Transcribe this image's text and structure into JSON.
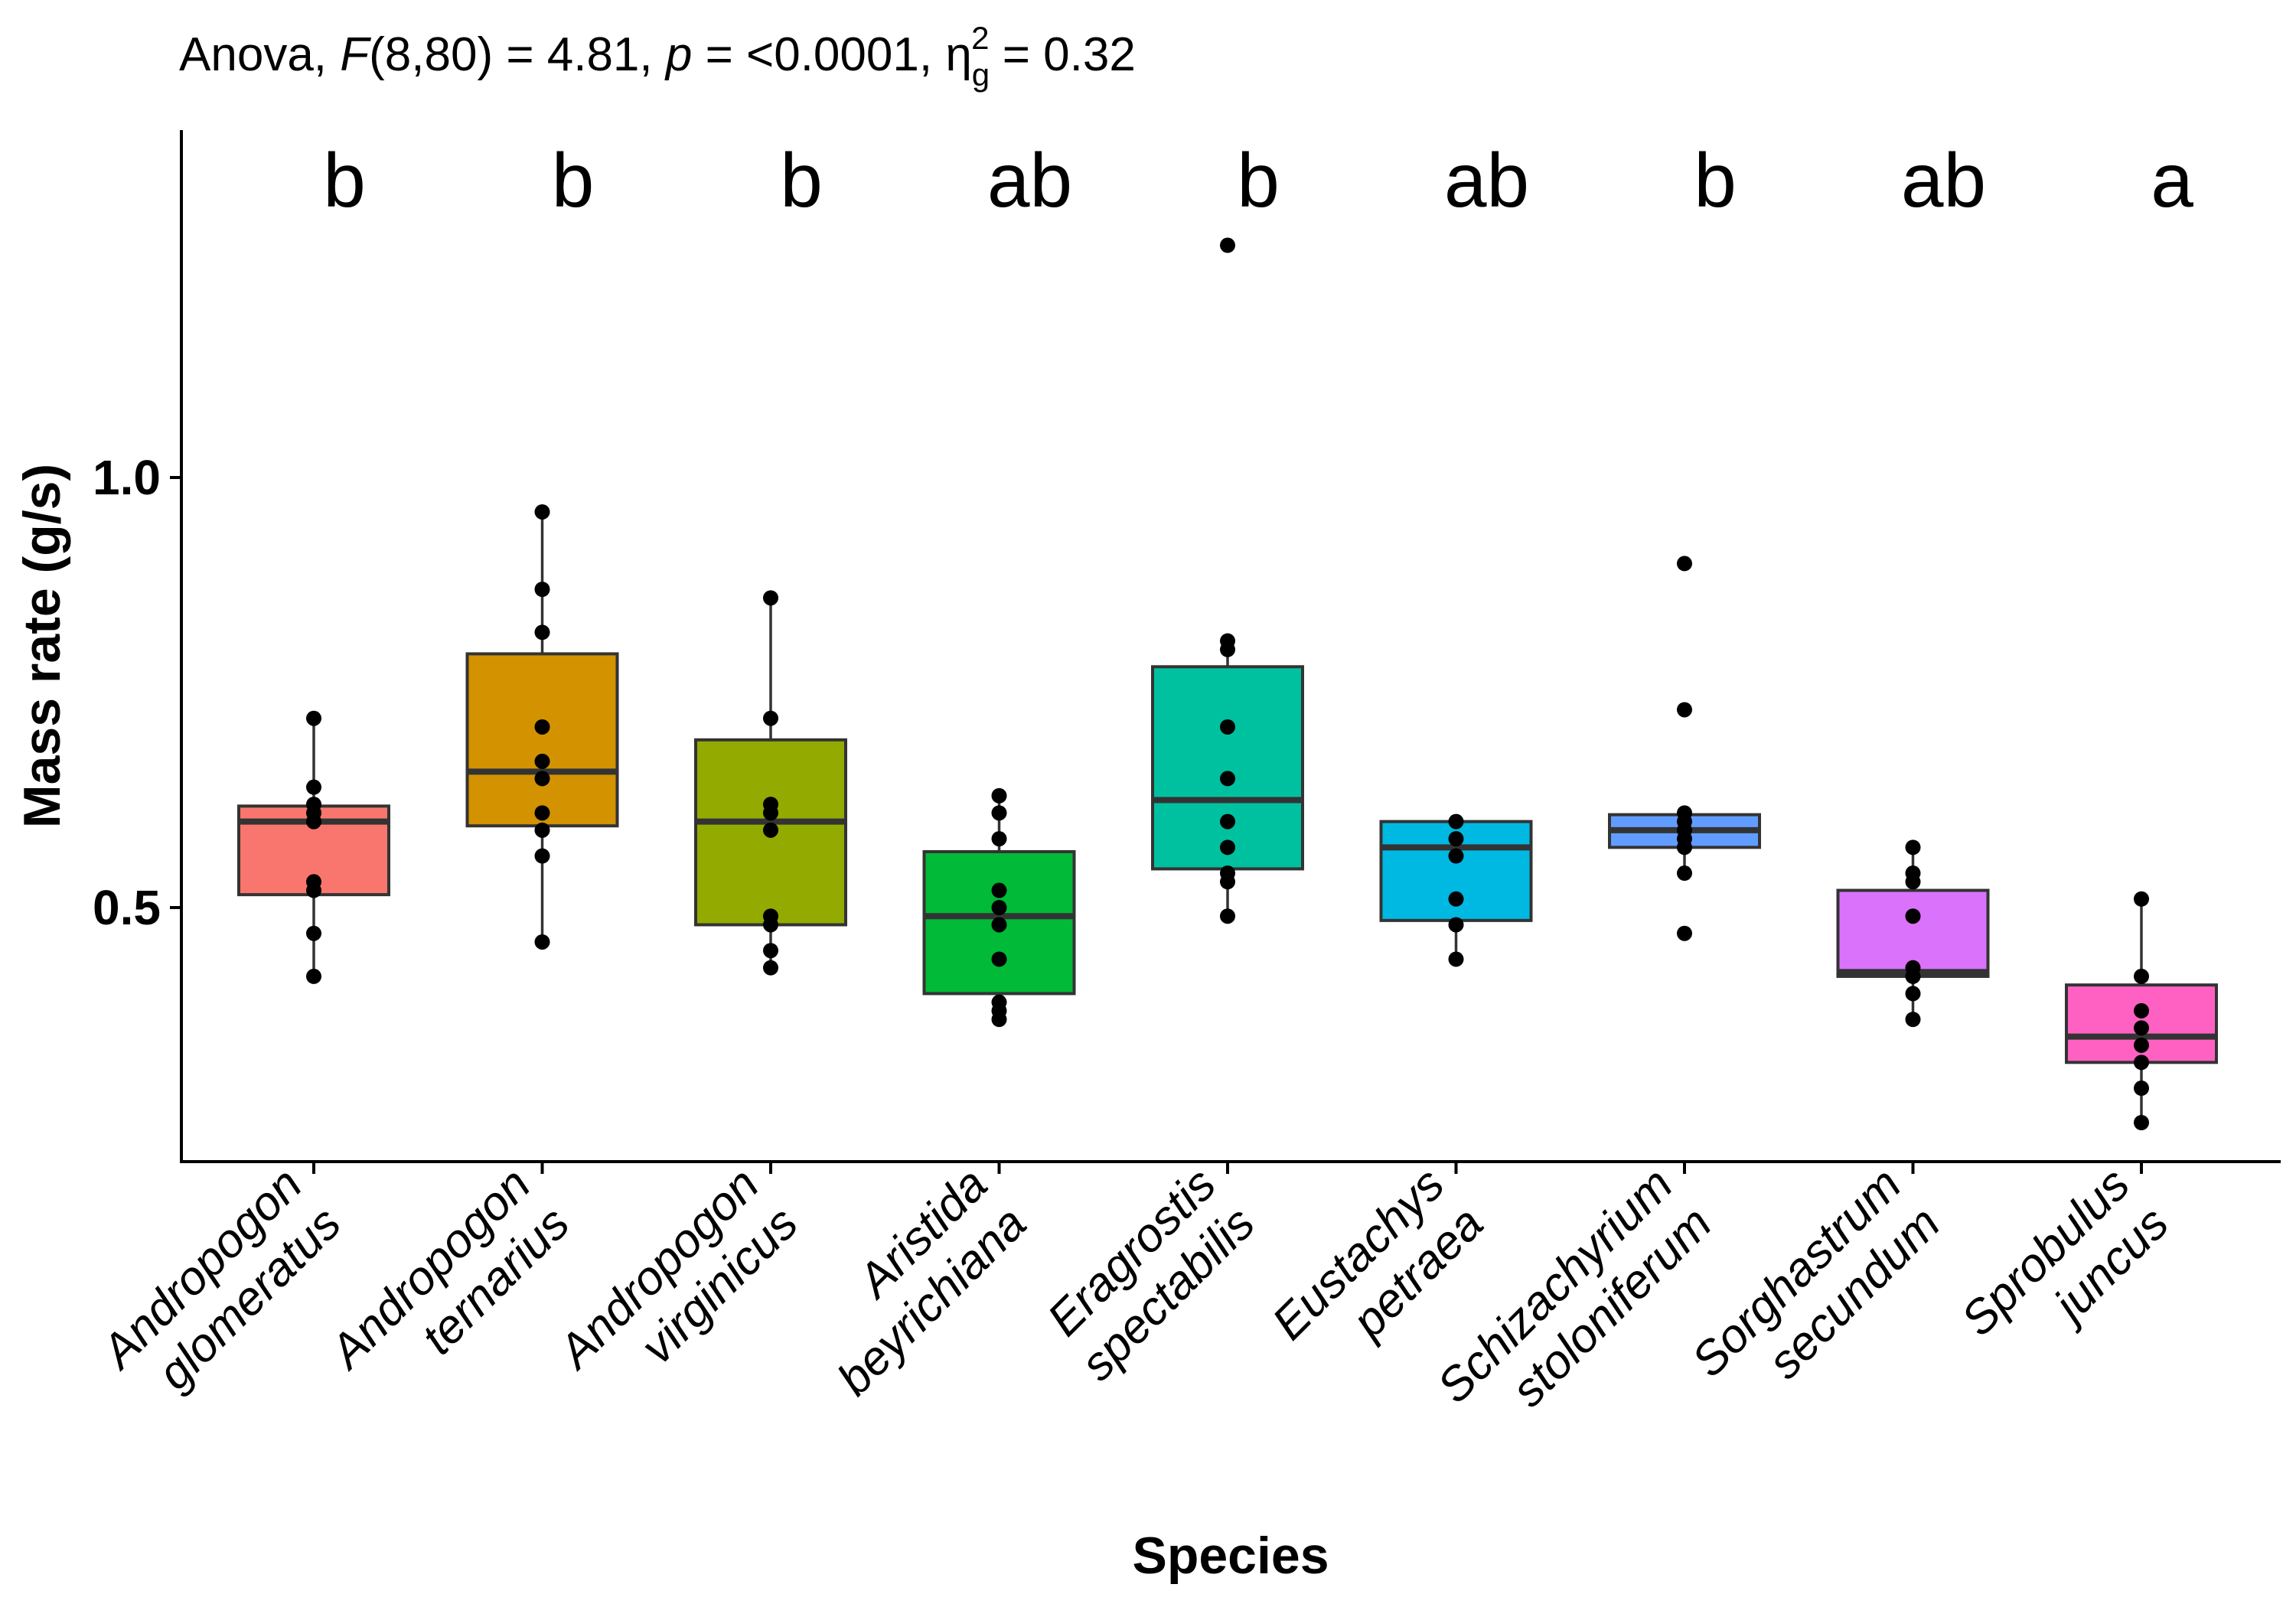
{
  "chart_data": {
    "type": "boxplot",
    "title_parts": {
      "prefix": "Anova, ",
      "f_label": "F",
      "f_args": "(8,80) = 4.81, ",
      "p_label": "p",
      "p_value": " = <0.0001, ",
      "eta": "η",
      "eta_sub": "g",
      "eta_sup": "2",
      "eta_value": " = 0.32"
    },
    "xlabel": "Species",
    "ylabel": "Mass rate (g/s)",
    "y_ticks": [
      {
        "value": 0.5,
        "label": "0.5"
      },
      {
        "value": 1.0,
        "label": "1.0"
      }
    ],
    "categories": [
      {
        "name_line1": "Andropogon",
        "name_line2": "glomeratus",
        "color": "#F8766D",
        "letter": "b",
        "q1": 0.515,
        "median": 0.6,
        "q3": 0.618,
        "whisker_low": 0.42,
        "whisker_high": 0.72,
        "points": [
          0.72,
          0.64,
          0.62,
          0.61,
          0.6,
          0.6,
          0.53,
          0.52,
          0.47,
          0.42
        ]
      },
      {
        "name_line1": "Andropogon",
        "name_line2": "ternarius",
        "color": "#D39200",
        "letter": "b",
        "q1": 0.595,
        "median": 0.658,
        "q3": 0.795,
        "whisker_low": 0.46,
        "whisker_high": 0.96,
        "points": [
          0.96,
          0.87,
          0.82,
          0.71,
          0.67,
          0.65,
          0.61,
          0.59,
          0.56,
          0.46
        ]
      },
      {
        "name_line1": "Andropogon",
        "name_line2": "virginicus",
        "color": "#93AA00",
        "letter": "b",
        "q1": 0.48,
        "median": 0.6,
        "q3": 0.695,
        "whisker_low": 0.43,
        "whisker_high": 0.86,
        "points": [
          0.86,
          0.72,
          0.62,
          0.61,
          0.59,
          0.49,
          0.48,
          0.45,
          0.43
        ]
      },
      {
        "name_line1": "Aristida",
        "name_line2": "beyrichiana",
        "color": "#00BA38",
        "letter": "ab",
        "q1": 0.4,
        "median": 0.49,
        "q3": 0.565,
        "whisker_low": 0.37,
        "whisker_high": 0.63,
        "points": [
          0.63,
          0.61,
          0.58,
          0.52,
          0.5,
          0.48,
          0.44,
          0.39,
          0.38,
          0.37
        ]
      },
      {
        "name_line1": "Eragrostis",
        "name_line2": "spectabilis",
        "color": "#00C19F",
        "letter": "b",
        "q1": 0.545,
        "median": 0.625,
        "q3": 0.78,
        "whisker_low": 0.49,
        "whisker_high": 0.81,
        "points": [
          1.27,
          0.81,
          0.8,
          0.71,
          0.65,
          0.6,
          0.57,
          0.54,
          0.53,
          0.49
        ]
      },
      {
        "name_line1": "Eustachys",
        "name_line2": "petraea",
        "color": "#00B9E3",
        "letter": "ab",
        "q1": 0.485,
        "median": 0.57,
        "q3": 0.6,
        "whisker_low": 0.44,
        "whisker_high": 0.6,
        "points": [
          0.6,
          0.58,
          0.56,
          0.51,
          0.48,
          0.44
        ]
      },
      {
        "name_line1": "Schizachyrium",
        "name_line2": "stoloniferum",
        "color": "#619CFF",
        "letter": "b",
        "q1": 0.57,
        "median": 0.59,
        "q3": 0.608,
        "whisker_low": 0.54,
        "whisker_high": 0.61,
        "points": [
          0.9,
          0.73,
          0.61,
          0.6,
          0.59,
          0.58,
          0.57,
          0.54,
          0.47
        ]
      },
      {
        "name_line1": "Sorghastrum",
        "name_line2": "secundum",
        "color": "#DB72FB",
        "letter": "ab",
        "q1": 0.42,
        "median": 0.425,
        "q3": 0.52,
        "whisker_low": 0.37,
        "whisker_high": 0.57,
        "points": [
          0.57,
          0.54,
          0.53,
          0.49,
          0.43,
          0.42,
          0.4,
          0.37
        ]
      },
      {
        "name_line1": "Sprobulus",
        "name_line2": "juncus",
        "color": "#FF61C3",
        "letter": "a",
        "q1": 0.32,
        "median": 0.35,
        "q3": 0.41,
        "whisker_low": 0.25,
        "whisker_high": 0.51,
        "points": [
          0.51,
          0.42,
          0.38,
          0.36,
          0.34,
          0.32,
          0.29,
          0.25
        ]
      }
    ]
  }
}
